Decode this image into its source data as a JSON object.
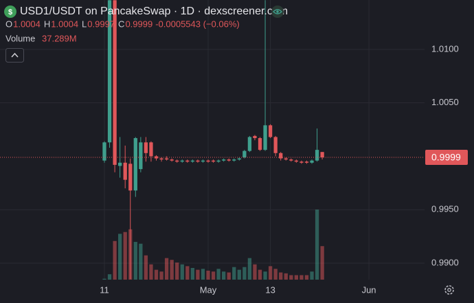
{
  "chart_data": {
    "type": "candlestick",
    "title": "USD1/USDT on PancakeSwap · 1D · dexscreener.com",
    "ohlc_legend": [
      {
        "label": "O",
        "value": 1.0004
      },
      {
        "label": "H",
        "value": 1.0004
      },
      {
        "label": "L",
        "value": 0.9997
      },
      {
        "label": "C",
        "value": 0.9999
      }
    ],
    "change_label": "-0.0005543 (−0.06%)",
    "volume_title": "Volume",
    "volume_label": "37.289M",
    "last_price": 0.9999,
    "up_color": "#3f9f8d",
    "down_color": "#e0575a",
    "xlim": [
      -20.13,
      61.72
    ],
    "xticks": [
      {
        "value": 0,
        "label": "11"
      },
      {
        "value": 20,
        "label": "May"
      },
      {
        "value": 32,
        "label": "13"
      },
      {
        "value": 51,
        "label": "Jun"
      }
    ],
    "ylim": [
      0.98846,
      1.01462
    ],
    "yticks": [
      {
        "value": 0.99,
        "label": "0.9900"
      },
      {
        "value": 0.995,
        "label": "0.9950"
      },
      {
        "value": 1.005,
        "label": "1.0050"
      },
      {
        "value": 1.01,
        "label": "1.0100"
      }
    ],
    "grid": true,
    "candles": {
      "x": [
        0,
        1,
        2,
        3,
        4,
        5,
        6,
        7,
        8,
        9,
        10,
        11,
        12,
        13,
        14,
        15,
        16,
        17,
        18,
        19,
        20,
        21,
        22,
        23,
        24,
        25,
        26,
        27,
        28,
        29,
        30,
        31,
        32,
        33,
        34,
        35,
        36,
        37,
        38,
        39,
        40,
        41,
        42
      ],
      "open": [
        0.9996,
        1.0013,
        1.0146,
        0.9991,
        0.9994,
        0.9993,
        0.9968,
        0.9988,
        1.0013,
        1.0013,
        1.0,
        0.9998,
        0.9998,
        0.9997,
        0.9996,
        0.9995,
        0.9996,
        0.9995,
        0.9996,
        0.9995,
        0.9996,
        0.9996,
        0.9995,
        0.9996,
        0.9997,
        0.9996,
        0.9997,
        0.9999,
        1.0005,
        1.0019,
        1.0017,
        1.0006,
        1.0029,
        1.0018,
        1.0003,
        0.9998,
        0.9997,
        0.9996,
        0.9995,
        0.9995,
        0.9994,
        0.9996,
        1.0004
      ],
      "high": [
        1.0014,
        1.0146,
        1.0146,
        1.0018,
        1.001,
        0.9998,
        1.0018,
        1.0018,
        1.0018,
        1.0014,
        1.0001,
        0.9999,
        1.0,
        0.9998,
        0.9997,
        0.9997,
        0.9997,
        0.9997,
        0.9997,
        0.9997,
        0.9997,
        0.9997,
        0.9997,
        0.9998,
        0.9998,
        0.9998,
        0.9999,
        1.0006,
        1.0019,
        1.002,
        1.0018,
        1.0146,
        1.003,
        1.0019,
        1.0004,
        0.9999,
        0.9998,
        0.9997,
        0.9996,
        0.9996,
        0.9997,
        1.0026,
        1.0004
      ],
      "low": [
        0.9994,
        1.0008,
        0.9985,
        0.998,
        0.997,
        0.9885,
        0.9962,
        0.9985,
        0.9995,
        0.9995,
        0.9996,
        0.9995,
        0.9996,
        0.9995,
        0.9994,
        0.9994,
        0.9994,
        0.9994,
        0.9994,
        0.9994,
        0.9994,
        0.9994,
        0.9994,
        0.9995,
        0.9995,
        0.9995,
        0.9996,
        0.9998,
        1.0004,
        1.0015,
        1.0005,
        1.0005,
        1.0017,
        1.0,
        0.9996,
        0.9996,
        0.9995,
        0.9994,
        0.9993,
        0.9993,
        0.9993,
        0.9995,
        0.9997
      ],
      "close": [
        1.0013,
        1.0146,
        0.9992,
        0.9994,
        0.9978,
        0.9968,
        1.0017,
        1.0013,
        1.0003,
        1.0,
        0.9998,
        0.9997,
        0.9997,
        0.9996,
        0.9995,
        0.9996,
        0.9995,
        0.9996,
        0.9995,
        0.9996,
        0.9995,
        0.9995,
        0.9996,
        0.9997,
        0.9996,
        0.9997,
        0.9998,
        1.0005,
        1.0018,
        1.0017,
        1.0006,
        1.0029,
        1.0018,
        1.0003,
        0.9998,
        0.9997,
        0.9996,
        0.9995,
        0.9994,
        0.9994,
        0.9996,
        1.0006,
        0.9999
      ],
      "volume": [
        1,
        6,
        43,
        51,
        53,
        56,
        42,
        40,
        27,
        17,
        11,
        9,
        24,
        22,
        19,
        17,
        15,
        13,
        11,
        12,
        10,
        9,
        12,
        9,
        8,
        14,
        11,
        14,
        24,
        17,
        11,
        9,
        15,
        12,
        8,
        7,
        5,
        5,
        5,
        5,
        9,
        78,
        37.289
      ]
    }
  }
}
